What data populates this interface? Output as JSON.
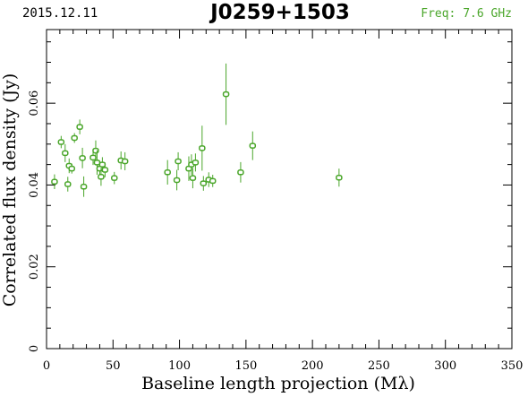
{
  "header": {
    "date": "2015.12.11",
    "source": "J0259+1503",
    "freq": "Freq: 7.6 GHz"
  },
  "colors": {
    "accent": "#4aa62a",
    "axis": "#000000",
    "background": "#ffffff"
  },
  "chart_data": {
    "type": "scatter",
    "title": "J0259+1503",
    "xlabel": "Baseline length projection (Mλ)",
    "ylabel": "Correlated flux density (Jy)",
    "xlim": [
      0,
      350
    ],
    "ylim": [
      0,
      0.078
    ],
    "grid": false,
    "xticks": [
      0,
      50,
      100,
      150,
      200,
      250,
      300,
      350
    ],
    "xtick_labels": [
      "0",
      "50",
      "100",
      "150",
      "200",
      "250",
      "300",
      "350"
    ],
    "yticks": [
      0,
      0.02,
      0.04,
      0.06
    ],
    "ytick_labels": [
      "0",
      "0.02",
      "0.04",
      "0.06"
    ],
    "series": [
      {
        "points": [
          {
            "x": 6,
            "y": 0.0408,
            "err": 0.0018
          },
          {
            "x": 11,
            "y": 0.0505,
            "err": 0.0015
          },
          {
            "x": 14,
            "y": 0.0478,
            "err": 0.0022
          },
          {
            "x": 16,
            "y": 0.0402,
            "err": 0.0018
          },
          {
            "x": 17,
            "y": 0.0447,
            "err": 0.0018
          },
          {
            "x": 19,
            "y": 0.044,
            "err": 0.0012
          },
          {
            "x": 21,
            "y": 0.0515,
            "err": 0.0012
          },
          {
            "x": 25,
            "y": 0.0542,
            "err": 0.0018
          },
          {
            "x": 27,
            "y": 0.0466,
            "err": 0.0025
          },
          {
            "x": 28,
            "y": 0.0396,
            "err": 0.0025
          },
          {
            "x": 35,
            "y": 0.0467,
            "err": 0.0018
          },
          {
            "x": 37,
            "y": 0.0484,
            "err": 0.0025
          },
          {
            "x": 38,
            "y": 0.0455,
            "err": 0.003
          },
          {
            "x": 40,
            "y": 0.044,
            "err": 0.0018
          },
          {
            "x": 41,
            "y": 0.042,
            "err": 0.0022
          },
          {
            "x": 42,
            "y": 0.045,
            "err": 0.0018
          },
          {
            "x": 44,
            "y": 0.0437,
            "err": 0.0018
          },
          {
            "x": 51,
            "y": 0.0417,
            "err": 0.0015
          },
          {
            "x": 56,
            "y": 0.046,
            "err": 0.0022
          },
          {
            "x": 59,
            "y": 0.0458,
            "err": 0.0022
          },
          {
            "x": 91,
            "y": 0.0431,
            "err": 0.003
          },
          {
            "x": 98,
            "y": 0.0412,
            "err": 0.0025
          },
          {
            "x": 99,
            "y": 0.0458,
            "err": 0.0022
          },
          {
            "x": 107,
            "y": 0.044,
            "err": 0.003
          },
          {
            "x": 109,
            "y": 0.045,
            "err": 0.0025
          },
          {
            "x": 110,
            "y": 0.0417,
            "err": 0.0025
          },
          {
            "x": 112,
            "y": 0.0455,
            "err": 0.0022
          },
          {
            "x": 117,
            "y": 0.049,
            "err": 0.0055
          },
          {
            "x": 118,
            "y": 0.0404,
            "err": 0.0018
          },
          {
            "x": 122,
            "y": 0.0413,
            "err": 0.0018
          },
          {
            "x": 125,
            "y": 0.041,
            "err": 0.0015
          },
          {
            "x": 135,
            "y": 0.0622,
            "err": 0.0075
          },
          {
            "x": 146,
            "y": 0.0431,
            "err": 0.0025
          },
          {
            "x": 155,
            "y": 0.0496,
            "err": 0.0035
          },
          {
            "x": 220,
            "y": 0.0418,
            "err": 0.0022
          }
        ]
      }
    ]
  }
}
